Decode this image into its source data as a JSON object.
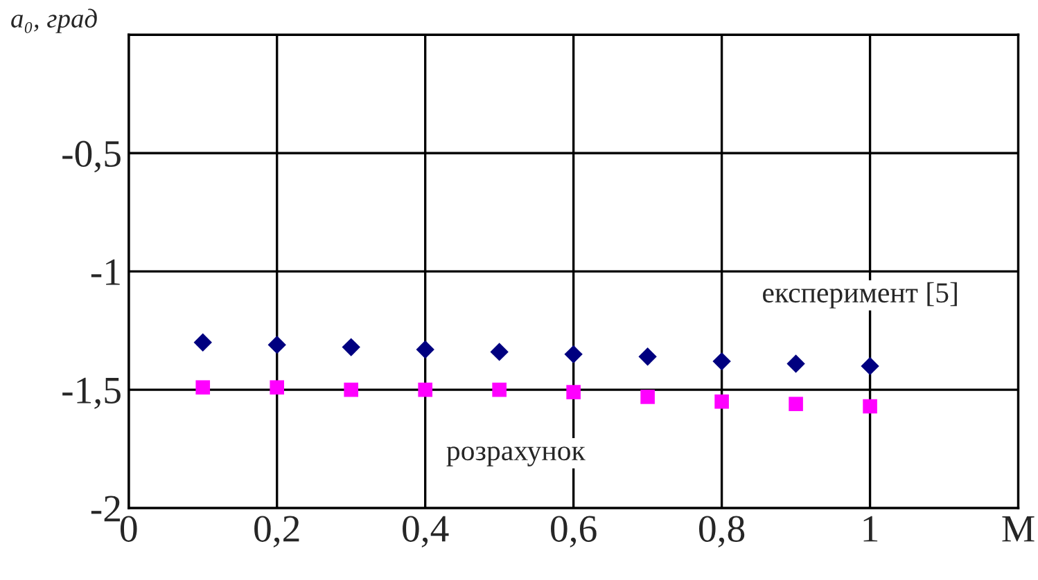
{
  "chart_data": {
    "type": "scatter",
    "ylabel": "a₀, град",
    "x": [
      0.1,
      0.2,
      0.3,
      0.4,
      0.5,
      0.6,
      0.7,
      0.8,
      0.9,
      1.0
    ],
    "series": [
      {
        "name": "експеримент [5]",
        "color": "#000080",
        "marker": "diamond",
        "values": [
          -1.3,
          -1.31,
          -1.32,
          -1.33,
          -1.34,
          -1.35,
          -1.36,
          -1.38,
          -1.39,
          -1.4
        ]
      },
      {
        "name": "розрахунок",
        "color": "#ff00ff",
        "marker": "square",
        "values": [
          -1.49,
          -1.49,
          -1.5,
          -1.5,
          -1.5,
          -1.51,
          -1.53,
          -1.55,
          -1.56,
          -1.57
        ]
      }
    ],
    "xlim": [
      0,
      1.2
    ],
    "xticks": [
      0,
      {
        "value": 0.2,
        "label": "0,2"
      },
      {
        "value": 0.4,
        "label": "0,4"
      },
      {
        "value": 0.6,
        "label": "0,6"
      },
      {
        "value": 0.8,
        "label": "0,8"
      },
      1,
      {
        "value": 1.2,
        "label": "M"
      }
    ],
    "ylim": [
      -2,
      0
    ],
    "yticks": [
      -2,
      {
        "value": -1.5,
        "label": "-1,5"
      },
      -1,
      {
        "value": -0.5,
        "label": "-0,5"
      },
      {
        "value": 0,
        "label": null
      }
    ],
    "grid": true,
    "legend": false
  }
}
